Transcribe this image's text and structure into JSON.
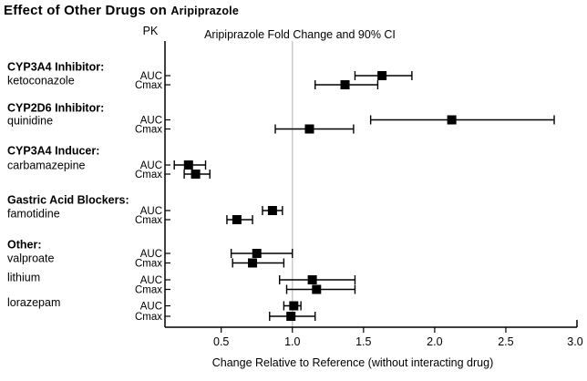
{
  "title": {
    "main": "Effect of Other Drugs on",
    "drug": "Aripiprazole"
  },
  "chart_data": {
    "type": "forest",
    "pk_header": "PK",
    "plot_header": "Aripiprazole Fold Change and 90% CI",
    "xlabel": "Change Relative to Reference (without interacting drug)",
    "x_tick_labels": [
      "0.5",
      "1.0",
      "1.5",
      "2.0",
      "2.5",
      "3.0"
    ],
    "xlim": [
      0.1,
      3.0
    ],
    "reference_line": 1.0,
    "reference_line_color": "#c9c9c9",
    "marker_color": "#000000",
    "grid": "off",
    "legend": "none",
    "groups": [
      {
        "header": "CYP3A4 Inhibitor:",
        "header_y": 73,
        "drugs": [
          {
            "name": "ketoconazole",
            "name_y": 88,
            "rows": [
              {
                "pk": "AUC",
                "y": 83,
                "est": 1.63,
                "lo": 1.44,
                "hi": 1.84
              },
              {
                "pk": "Cmax",
                "y": 93,
                "est": 1.37,
                "lo": 1.16,
                "hi": 1.6
              }
            ]
          }
        ]
      },
      {
        "header": "CYP2D6 Inhibitor:",
        "header_y": 118,
        "drugs": [
          {
            "name": "quinidine",
            "name_y": 132,
            "rows": [
              {
                "pk": "AUC",
                "y": 131.5,
                "est": 2.12,
                "lo": 1.55,
                "hi": 2.84
              },
              {
                "pk": "Cmax",
                "y": 141.5,
                "est": 1.12,
                "lo": 0.88,
                "hi": 1.43
              }
            ]
          }
        ]
      },
      {
        "header": "CYP3A4 Inducer:",
        "header_y": 165,
        "drugs": [
          {
            "name": "carbamazepine",
            "name_y": 181,
            "rows": [
              {
                "pk": "AUC",
                "y": 181,
                "est": 0.27,
                "lo": 0.17,
                "hi": 0.39
              },
              {
                "pk": "Cmax",
                "y": 191,
                "est": 0.32,
                "lo": 0.24,
                "hi": 0.42
              }
            ]
          }
        ]
      },
      {
        "header": "Gastric Acid Blockers:",
        "header_y": 219,
        "drugs": [
          {
            "name": "famotidine",
            "name_y": 234,
            "rows": [
              {
                "pk": "AUC",
                "y": 231,
                "est": 0.86,
                "lo": 0.79,
                "hi": 0.93
              },
              {
                "pk": "Cmax",
                "y": 241,
                "est": 0.61,
                "lo": 0.54,
                "hi": 0.72
              }
            ]
          }
        ]
      },
      {
        "header": "Other:",
        "header_y": 268,
        "drugs": [
          {
            "name": "valproate",
            "name_y": 283,
            "rows": [
              {
                "pk": "AUC",
                "y": 278,
                "est": 0.75,
                "lo": 0.57,
                "hi": 1.0
              },
              {
                "pk": "Cmax",
                "y": 288.5,
                "est": 0.72,
                "lo": 0.58,
                "hi": 0.94
              }
            ]
          },
          {
            "name": "lithium",
            "name_y": 304,
            "rows": [
              {
                "pk": "AUC",
                "y": 307,
                "est": 1.14,
                "lo": 0.91,
                "hi": 1.44
              },
              {
                "pk": "Cmax",
                "y": 317.5,
                "est": 1.17,
                "lo": 0.96,
                "hi": 1.44
              }
            ]
          },
          {
            "name": "lorazepam",
            "name_y": 331.5,
            "rows": [
              {
                "pk": "AUC",
                "y": 335.5,
                "est": 1.01,
                "lo": 0.94,
                "hi": 1.06
              },
              {
                "pk": "Cmax",
                "y": 347,
                "est": 0.99,
                "lo": 0.84,
                "hi": 1.16
              }
            ]
          }
        ]
      }
    ]
  }
}
